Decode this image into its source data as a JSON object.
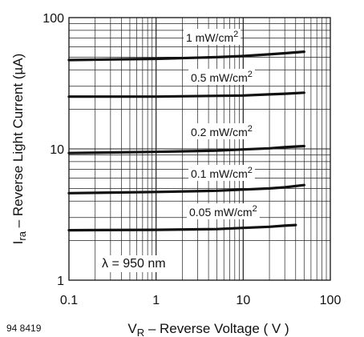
{
  "chart_data": {
    "type": "line",
    "x_scale": "log",
    "y_scale": "log",
    "xlim": [
      0.1,
      100
    ],
    "ylim": [
      1,
      100
    ],
    "x_ticks": [
      {
        "value": 0.1,
        "label": "0.1"
      },
      {
        "value": 1,
        "label": "1"
      },
      {
        "value": 10,
        "label": "10"
      },
      {
        "value": 100,
        "label": "100"
      }
    ],
    "y_ticks": [
      {
        "value": 1,
        "label": "1"
      },
      {
        "value": 10,
        "label": "10"
      },
      {
        "value": 100,
        "label": "100"
      }
    ],
    "grid": true,
    "xlabel": {
      "prefix": "V",
      "sub": "R",
      "suffix": " – Reverse Voltage ( V )"
    },
    "ylabel": {
      "prefix": "I",
      "sub": "ra",
      "suffix": " – Reverse Light Current (µA)"
    },
    "annotation": "λ = 950 nm",
    "figure_id": "94 8419",
    "series": [
      {
        "name": "1 mW/cm²",
        "label_main": "1 mW/cm",
        "label_sup": "2",
        "x": [
          0.1,
          1,
          5,
          10,
          20,
          30,
          50
        ],
        "y": [
          47.5,
          48.5,
          50,
          51,
          52.5,
          53.5,
          55
        ]
      },
      {
        "name": "0.5 mW/cm²",
        "label_main": "0.5 mW/cm",
        "label_sup": "2",
        "x": [
          0.1,
          1,
          10,
          20,
          30,
          50
        ],
        "y": [
          25,
          25,
          25.5,
          26,
          26.3,
          26.8
        ]
      },
      {
        "name": "0.2 mW/cm²",
        "label_main": "0.2 mW/cm",
        "label_sup": "2",
        "x": [
          0.1,
          1,
          5,
          10,
          20,
          30,
          50
        ],
        "y": [
          9.3,
          9.5,
          9.7,
          9.9,
          10.1,
          10.3,
          10.5
        ]
      },
      {
        "name": "0.1 mW/cm²",
        "label_main": "0.1 mW/cm",
        "label_sup": "2",
        "x": [
          0.1,
          1,
          5,
          10,
          20,
          30,
          50
        ],
        "y": [
          4.6,
          4.7,
          4.8,
          4.9,
          5.0,
          5.1,
          5.3
        ]
      },
      {
        "name": "0.05 mW/cm²",
        "label_main": "0.05 mW/cm",
        "label_sup": "2",
        "x": [
          0.1,
          1,
          5,
          10,
          20,
          30,
          40
        ],
        "y": [
          2.4,
          2.42,
          2.45,
          2.5,
          2.55,
          2.6,
          2.63
        ]
      }
    ]
  }
}
